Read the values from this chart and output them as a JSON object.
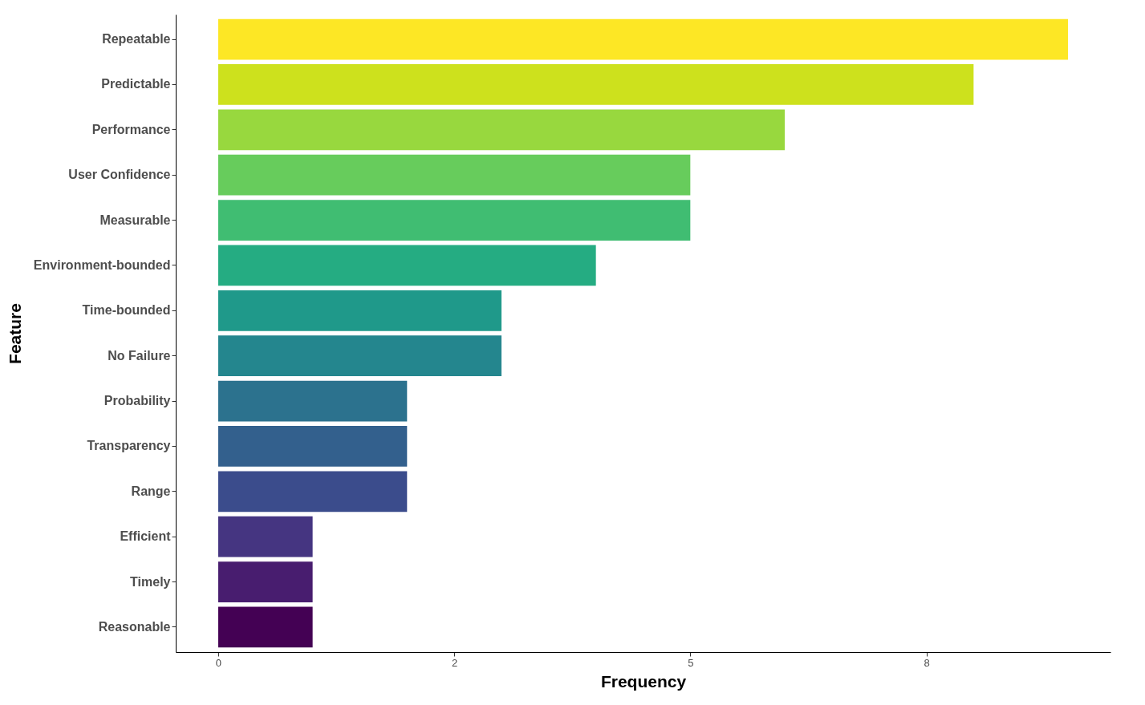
{
  "chart_data": {
    "type": "bar",
    "orientation": "horizontal",
    "xlabel": "Frequency",
    "ylabel": "Feature",
    "categories": [
      "Repeatable",
      "Predictable",
      "Performance",
      "User Confidence",
      "Measurable",
      "Environment-bounded",
      "Time-bounded",
      "No Failure",
      "Probability",
      "Transparency",
      "Range",
      "Efficient",
      "Timely",
      "Reasonable"
    ],
    "values": [
      9,
      8,
      6,
      5,
      5,
      4,
      3,
      3,
      2,
      2,
      2,
      1,
      1,
      1
    ],
    "colors": [
      "#fde725",
      "#cde11d",
      "#98d83e",
      "#67cc5c",
      "#40bd72",
      "#25ac82",
      "#1f998a",
      "#24868e",
      "#2c728e",
      "#33608d",
      "#3b4c8c",
      "#453581",
      "#481d6f",
      "#440154"
    ],
    "xlim": [
      -0.45,
      9.45
    ],
    "xticks": [
      0,
      {
        "value": 2.5,
        "label": "2"
      },
      5,
      {
        "value": 7.5,
        "label": "8"
      }
    ],
    "grid": false,
    "legend": false
  }
}
